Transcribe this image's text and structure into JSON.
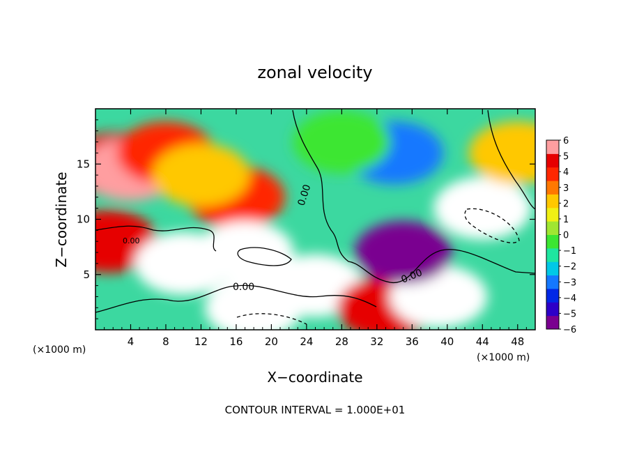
{
  "chart_data": {
    "type": "heatmap",
    "title": "zonal velocity",
    "xlabel": "X−coordinate",
    "ylabel": "Z−coordinate",
    "x_unit_left": "(×1000 m)",
    "x_unit_right": "(×1000 m)",
    "xlim": [
      0,
      50
    ],
    "ylim": [
      0,
      20
    ],
    "x_ticks": [
      4,
      8,
      12,
      16,
      20,
      24,
      28,
      32,
      36,
      40,
      44,
      48
    ],
    "x_tick_labels": [
      "4",
      "8",
      "12",
      "16",
      "20",
      "24",
      "28",
      "32",
      "36",
      "40",
      "44",
      "48"
    ],
    "y_ticks": [
      5,
      10,
      15
    ],
    "y_tick_labels": [
      "5",
      "10",
      "15"
    ],
    "colorbar": {
      "range": [
        -6,
        6
      ],
      "tick_labels": [
        "6",
        "5",
        "4",
        "3",
        "2",
        "1",
        "0",
        "−1",
        "−2",
        "−3",
        "−4",
        "−5",
        "−6"
      ],
      "colors": [
        "#7a0090",
        "#2d00c8",
        "#0028e6",
        "#1478ff",
        "#00c8e6",
        "#1ee6a0",
        "#3ce632",
        "#a0e632",
        "#f0f014",
        "#ffc800",
        "#ff7800",
        "#ff2800",
        "#e60000",
        "#ff9ea0"
      ],
      "out_of_range_color": "#ffffff"
    },
    "contour_labels": [
      "0.00",
      "0.00",
      "0.00",
      "0.00"
    ],
    "footer": "CONTOUR INTERVAL = 1.000E+01",
    "regions": [
      {
        "x": 2,
        "z": 15,
        "u": 5
      },
      {
        "x": 4,
        "z": 14.5,
        "u": 6
      },
      {
        "x": 8,
        "z": 16,
        "u": 3.5
      },
      {
        "x": 16,
        "z": 12,
        "u": 4
      },
      {
        "x": 12,
        "z": 14,
        "u": 2.5
      },
      {
        "x": 1.5,
        "z": 8,
        "u": 4.5
      },
      {
        "x": 10,
        "z": 6,
        "u": -6.5
      },
      {
        "x": 17,
        "z": 7,
        "u": 7
      },
      {
        "x": 18,
        "z": 2,
        "u": 7
      },
      {
        "x": 25,
        "z": 4,
        "u": 7
      },
      {
        "x": 33,
        "z": 2,
        "u": 5
      },
      {
        "x": 39,
        "z": 3,
        "u": 7
      },
      {
        "x": 44,
        "z": 11,
        "u": -7
      },
      {
        "x": 35,
        "z": 7,
        "u": -6
      },
      {
        "x": 34,
        "z": 16,
        "u": -3
      },
      {
        "x": 28,
        "z": 17,
        "u": -0.5
      },
      {
        "x": 48,
        "z": 16,
        "u": 2
      }
    ]
  }
}
